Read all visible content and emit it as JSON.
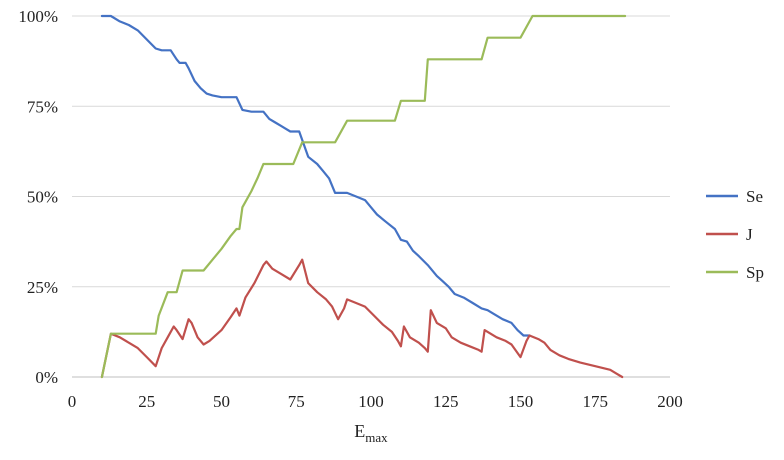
{
  "chart_data": {
    "type": "line",
    "title": "",
    "xlabel": "E",
    "xlabel_sub": "max",
    "ylabel": "",
    "xlim": [
      0,
      200
    ],
    "ylim": [
      0,
      100
    ],
    "x_ticks": [
      0,
      25,
      50,
      75,
      100,
      125,
      150,
      175,
      200
    ],
    "x_tick_labels": [
      "0",
      "25",
      "50",
      "75",
      "100",
      "125",
      "150",
      "175",
      "200"
    ],
    "y_ticks": [
      0,
      25,
      50,
      75,
      100
    ],
    "y_tick_labels": [
      "0%",
      "25%",
      "50%",
      "75%",
      "100%"
    ],
    "grid": "horizontal",
    "legend_position": "right",
    "series": [
      {
        "name": "Se",
        "color": "#4472c4",
        "points": [
          [
            10,
            100
          ],
          [
            13,
            100
          ],
          [
            16,
            98.5
          ],
          [
            19,
            97.5
          ],
          [
            22,
            96
          ],
          [
            25,
            93.5
          ],
          [
            28,
            91
          ],
          [
            30,
            90.5
          ],
          [
            33,
            90.5
          ],
          [
            35,
            88
          ],
          [
            36,
            87
          ],
          [
            38,
            87
          ],
          [
            39,
            85.5
          ],
          [
            41,
            82
          ],
          [
            43,
            80
          ],
          [
            45,
            78.5
          ],
          [
            47,
            78
          ],
          [
            50,
            77.5
          ],
          [
            55,
            77.5
          ],
          [
            57,
            74
          ],
          [
            60,
            73.5
          ],
          [
            64,
            73.5
          ],
          [
            66,
            71.5
          ],
          [
            68,
            70.5
          ],
          [
            70,
            69.5
          ],
          [
            73,
            68
          ],
          [
            76,
            68
          ],
          [
            79,
            61
          ],
          [
            82,
            59
          ],
          [
            84,
            57
          ],
          [
            86,
            55
          ],
          [
            88,
            51
          ],
          [
            92,
            51
          ],
          [
            95,
            50
          ],
          [
            98,
            49
          ],
          [
            100,
            47
          ],
          [
            102,
            45
          ],
          [
            105,
            43
          ],
          [
            108,
            41
          ],
          [
            110,
            38
          ],
          [
            112,
            37.5
          ],
          [
            114,
            35
          ],
          [
            116,
            33.5
          ],
          [
            119,
            31
          ],
          [
            120,
            30
          ],
          [
            122,
            28
          ],
          [
            124,
            26.5
          ],
          [
            126,
            25
          ],
          [
            128,
            23
          ],
          [
            131,
            22
          ],
          [
            134,
            20.5
          ],
          [
            137,
            19
          ],
          [
            139,
            18.5
          ],
          [
            141,
            17.5
          ],
          [
            144,
            16
          ],
          [
            147,
            15
          ],
          [
            149,
            13
          ],
          [
            151,
            11.5
          ],
          [
            153,
            11.5
          ]
        ]
      },
      {
        "name": "J",
        "color": "#c0504d",
        "points": [
          [
            10,
            0
          ],
          [
            13,
            12
          ],
          [
            16,
            11
          ],
          [
            19,
            9.5
          ],
          [
            22,
            8
          ],
          [
            25,
            5.5
          ],
          [
            28,
            3
          ],
          [
            30,
            8
          ],
          [
            32,
            11
          ],
          [
            34,
            14
          ],
          [
            35,
            13
          ],
          [
            37,
            10.5
          ],
          [
            39,
            16
          ],
          [
            40,
            15
          ],
          [
            42,
            11
          ],
          [
            44,
            9
          ],
          [
            46,
            10
          ],
          [
            50,
            13
          ],
          [
            53,
            16.5
          ],
          [
            55,
            19
          ],
          [
            56,
            17
          ],
          [
            58,
            22
          ],
          [
            61,
            26
          ],
          [
            64,
            31
          ],
          [
            65,
            32
          ],
          [
            67,
            30
          ],
          [
            70,
            28.5
          ],
          [
            73,
            27
          ],
          [
            76,
            31
          ],
          [
            77,
            32.5
          ],
          [
            79,
            26
          ],
          [
            82,
            23.5
          ],
          [
            85,
            21.5
          ],
          [
            87,
            19.5
          ],
          [
            89,
            16
          ],
          [
            91,
            19
          ],
          [
            92,
            21.5
          ],
          [
            95,
            20.5
          ],
          [
            98,
            19.5
          ],
          [
            101,
            17
          ],
          [
            104,
            14.5
          ],
          [
            107,
            12.5
          ],
          [
            109,
            10
          ],
          [
            110,
            8.5
          ],
          [
            111,
            14
          ],
          [
            113,
            11
          ],
          [
            116,
            9.5
          ],
          [
            118,
            8
          ],
          [
            119,
            7
          ],
          [
            120,
            18.5
          ],
          [
            122,
            15
          ],
          [
            125,
            13.5
          ],
          [
            127,
            11
          ],
          [
            130,
            9.5
          ],
          [
            133,
            8.5
          ],
          [
            136,
            7.5
          ],
          [
            137,
            7
          ],
          [
            138,
            13
          ],
          [
            140,
            12
          ],
          [
            142,
            11
          ],
          [
            145,
            10
          ],
          [
            147,
            9
          ],
          [
            150,
            5.5
          ],
          [
            152,
            10
          ],
          [
            153,
            11.5
          ],
          [
            156,
            10.5
          ],
          [
            158,
            9.5
          ],
          [
            160,
            7.5
          ],
          [
            163,
            6
          ],
          [
            166,
            5
          ],
          [
            170,
            4
          ],
          [
            175,
            3
          ],
          [
            180,
            2
          ],
          [
            182,
            1
          ],
          [
            184,
            0
          ]
        ]
      },
      {
        "name": "Sp",
        "color": "#9bbb59",
        "points": [
          [
            10,
            0
          ],
          [
            13,
            12
          ],
          [
            16,
            12
          ],
          [
            20,
            12
          ],
          [
            25,
            12
          ],
          [
            28,
            12
          ],
          [
            29,
            17
          ],
          [
            32,
            23.5
          ],
          [
            35,
            23.5
          ],
          [
            37,
            29.5
          ],
          [
            40,
            29.5
          ],
          [
            44,
            29.5
          ],
          [
            47,
            32.5
          ],
          [
            50,
            35.5
          ],
          [
            53,
            39
          ],
          [
            55,
            41
          ],
          [
            56,
            41
          ],
          [
            57,
            47
          ],
          [
            60,
            51.5
          ],
          [
            62,
            55
          ],
          [
            64,
            59
          ],
          [
            67,
            59
          ],
          [
            72,
            59
          ],
          [
            74,
            59
          ],
          [
            77,
            65
          ],
          [
            81,
            65
          ],
          [
            84,
            65
          ],
          [
            88,
            65
          ],
          [
            92,
            71
          ],
          [
            95,
            71
          ],
          [
            100,
            71
          ],
          [
            108,
            71
          ],
          [
            110,
            76.5
          ],
          [
            114,
            76.5
          ],
          [
            118,
            76.5
          ],
          [
            119,
            88
          ],
          [
            123,
            88
          ],
          [
            128,
            88
          ],
          [
            137,
            88
          ],
          [
            139,
            94
          ],
          [
            143,
            94
          ],
          [
            147,
            94
          ],
          [
            150,
            94
          ],
          [
            154,
            100
          ],
          [
            160,
            100
          ],
          [
            170,
            100
          ],
          [
            185,
            100
          ]
        ]
      }
    ]
  }
}
